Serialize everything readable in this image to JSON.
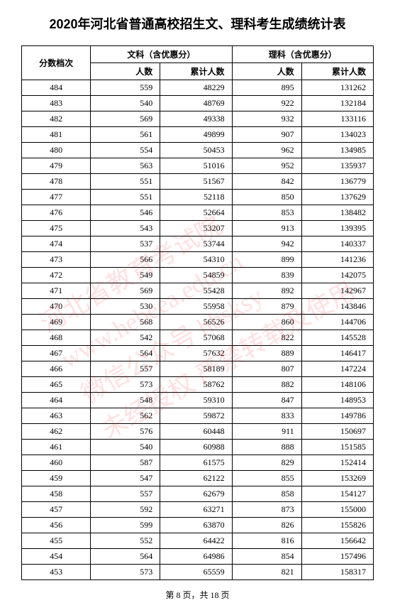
{
  "title": "2020年河北省普通高校招生文、理科考生成绩统计表",
  "headers": {
    "score_tier": "分数档次",
    "liberal_arts": "文科（含优惠分）",
    "science": "理科（含优惠分）",
    "count": "人数",
    "cumulative": "累计人数"
  },
  "rows": [
    {
      "score": 484,
      "la_count": 559,
      "la_cum": 48229,
      "sc_count": 895,
      "sc_cum": 131262
    },
    {
      "score": 483,
      "la_count": 540,
      "la_cum": 48769,
      "sc_count": 922,
      "sc_cum": 132184
    },
    {
      "score": 482,
      "la_count": 569,
      "la_cum": 49338,
      "sc_count": 932,
      "sc_cum": 133116
    },
    {
      "score": 481,
      "la_count": 561,
      "la_cum": 49899,
      "sc_count": 907,
      "sc_cum": 134023
    },
    {
      "score": 480,
      "la_count": 554,
      "la_cum": 50453,
      "sc_count": 962,
      "sc_cum": 134985
    },
    {
      "score": 479,
      "la_count": 563,
      "la_cum": 51016,
      "sc_count": 952,
      "sc_cum": 135937
    },
    {
      "score": 478,
      "la_count": 551,
      "la_cum": 51567,
      "sc_count": 842,
      "sc_cum": 136779
    },
    {
      "score": 477,
      "la_count": 551,
      "la_cum": 52118,
      "sc_count": 850,
      "sc_cum": 137629
    },
    {
      "score": 476,
      "la_count": 546,
      "la_cum": 52664,
      "sc_count": 853,
      "sc_cum": 138482
    },
    {
      "score": 475,
      "la_count": 543,
      "la_cum": 53207,
      "sc_count": 913,
      "sc_cum": 139395
    },
    {
      "score": 474,
      "la_count": 537,
      "la_cum": 53744,
      "sc_count": 942,
      "sc_cum": 140337
    },
    {
      "score": 473,
      "la_count": 566,
      "la_cum": 54310,
      "sc_count": 899,
      "sc_cum": 141236
    },
    {
      "score": 472,
      "la_count": 549,
      "la_cum": 54859,
      "sc_count": 839,
      "sc_cum": 142075
    },
    {
      "score": 471,
      "la_count": 569,
      "la_cum": 55428,
      "sc_count": 892,
      "sc_cum": 142967
    },
    {
      "score": 470,
      "la_count": 530,
      "la_cum": 55958,
      "sc_count": 879,
      "sc_cum": 143846
    },
    {
      "score": 469,
      "la_count": 568,
      "la_cum": 56526,
      "sc_count": 860,
      "sc_cum": 144706
    },
    {
      "score": 468,
      "la_count": 542,
      "la_cum": 57068,
      "sc_count": 822,
      "sc_cum": 145528
    },
    {
      "score": 467,
      "la_count": 564,
      "la_cum": 57632,
      "sc_count": 889,
      "sc_cum": 146417
    },
    {
      "score": 466,
      "la_count": 557,
      "la_cum": 58189,
      "sc_count": 807,
      "sc_cum": 147224
    },
    {
      "score": 465,
      "la_count": 573,
      "la_cum": 58762,
      "sc_count": 882,
      "sc_cum": 148106
    },
    {
      "score": 464,
      "la_count": 548,
      "la_cum": 59310,
      "sc_count": 847,
      "sc_cum": 148953
    },
    {
      "score": 463,
      "la_count": 562,
      "la_cum": 59872,
      "sc_count": 833,
      "sc_cum": 149786
    },
    {
      "score": 462,
      "la_count": 576,
      "la_cum": 60448,
      "sc_count": 911,
      "sc_cum": 150697
    },
    {
      "score": 461,
      "la_count": 540,
      "la_cum": 60988,
      "sc_count": 888,
      "sc_cum": 151585
    },
    {
      "score": 460,
      "la_count": 587,
      "la_cum": 61575,
      "sc_count": 829,
      "sc_cum": 152414
    },
    {
      "score": 459,
      "la_count": 547,
      "la_cum": 62122,
      "sc_count": 855,
      "sc_cum": 153269
    },
    {
      "score": 458,
      "la_count": 557,
      "la_cum": 62679,
      "sc_count": 858,
      "sc_cum": 154127
    },
    {
      "score": 457,
      "la_count": 592,
      "la_cum": 63271,
      "sc_count": 873,
      "sc_cum": 155000
    },
    {
      "score": 456,
      "la_count": 599,
      "la_cum": 63870,
      "sc_count": 826,
      "sc_cum": 155826
    },
    {
      "score": 455,
      "la_count": 552,
      "la_cum": 64422,
      "sc_count": 816,
      "sc_cum": 156642
    },
    {
      "score": 454,
      "la_count": 564,
      "la_cum": 64986,
      "sc_count": 854,
      "sc_cum": 157496
    },
    {
      "score": 453,
      "la_count": 573,
      "la_cum": 65559,
      "sc_count": 821,
      "sc_cum": 158317
    }
  ],
  "footer": "第 8 页，共 18 页",
  "watermark_lines": [
    "河北省教育考试院",
    "www.hebeea.edu.cn",
    "微信公众号 hbsksy",
    "未经授权 严禁转载及使用"
  ]
}
